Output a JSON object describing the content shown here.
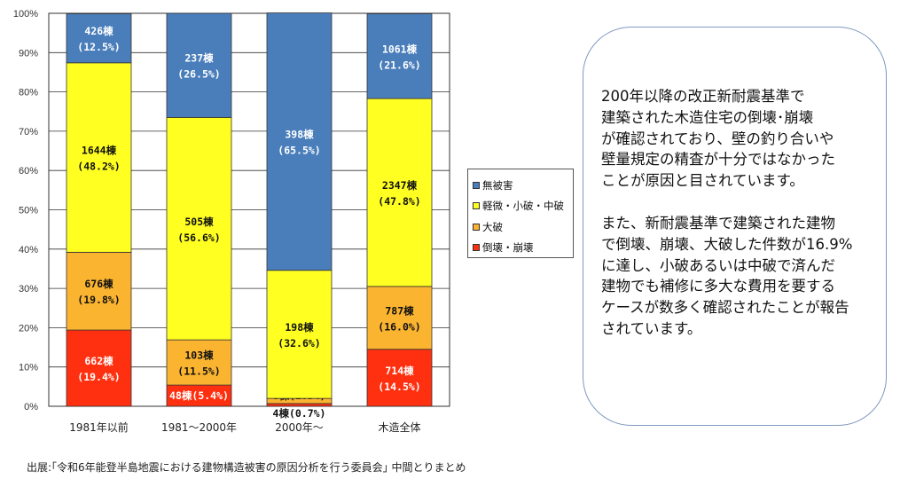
{
  "chart_data": {
    "type": "bar",
    "stacked": true,
    "ylim": [
      0,
      100
    ],
    "yticks": [
      "0%",
      "10%",
      "20%",
      "30%",
      "40%",
      "50%",
      "60%",
      "70%",
      "80%",
      "90%",
      "100%"
    ],
    "grid": true,
    "legend_placement": "right",
    "categories": [
      "1981年以前",
      "1981～2000年",
      "2000年～",
      "木造全体"
    ],
    "series": [
      {
        "name": "倒壊・崩壊",
        "color": "#ff3010",
        "label_color": "#ffffff",
        "values": [
          19.4,
          5.4,
          0.7,
          14.5
        ],
        "labels": [
          [
            "662棟",
            "(19.4%)"
          ],
          [
            "48棟(5.4%)"
          ],
          [
            "4棟(0.7%)"
          ],
          [
            "714棟",
            "(14.5%)"
          ]
        ]
      },
      {
        "name": "大破",
        "color": "#fbb430",
        "label_color": "#111111",
        "values": [
          19.8,
          11.5,
          1.3,
          16.0
        ],
        "labels": [
          [
            "676棟",
            "(19.8%)"
          ],
          [
            "103棟",
            "(11.5%)"
          ],
          [
            "8棟(1.3%)"
          ],
          [
            "787棟",
            "(16.0%)"
          ]
        ]
      },
      {
        "name": "軽微・小破・中破",
        "color": "#ffff22",
        "label_color": "#111111",
        "values": [
          48.2,
          56.6,
          32.6,
          47.8
        ],
        "labels": [
          [
            "1644棟",
            "(48.2%)"
          ],
          [
            "505棟",
            "(56.6%)"
          ],
          [
            "198棟",
            "(32.6%)"
          ],
          [
            "2347棟",
            "(47.8%)"
          ]
        ]
      },
      {
        "name": "無被害",
        "color": "#4a7ebb",
        "label_color": "#ffffff",
        "values": [
          12.5,
          26.5,
          65.5,
          21.6
        ],
        "labels": [
          [
            "426棟",
            "(12.5%)"
          ],
          [
            "237棟",
            "(26.5%)"
          ],
          [
            "398棟",
            "(65.5%)"
          ],
          [
            "1061棟",
            "(21.6%)"
          ]
        ]
      }
    ]
  },
  "note": {
    "paragraph1": "200年以降の改正新耐震基準で\n建築された木造住宅の倒壊･崩壊\nが確認されており、壁の釣り合いや\n壁量規定の精査が十分ではなかった\nことが原因と目されています。",
    "paragraph2": "また、新耐震基準で建築された建物\nで倒壊、崩壊、大破した件数が16.9%\nに達し、小破あるいは中破で済んだ\n建物でも補修に多大な費用を要する\nケースが数多く確認されたことが報告\nされています。"
  },
  "source": "出展:｢令和6年能登半島地震における建物構造被害の原因分析を行う委員会｣ 中間とりまとめ"
}
